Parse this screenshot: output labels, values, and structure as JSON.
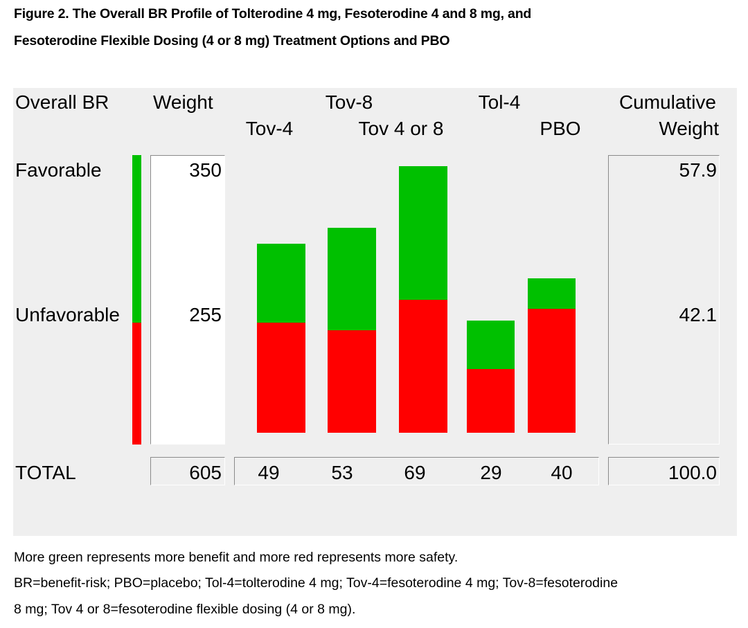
{
  "figure": {
    "title_line1": "Figure 2. The Overall BR Profile of Tolterodine 4 mg,  Fesoterodine 4 and 8 mg,  and",
    "title_line2": "Fesoterodine Flexible Dosing (4 or 8 mg)  Treatment Options and PBO",
    "footnote1": "More green represents more benefit and more red represents more safety.",
    "footnote2": "BR=benefit-risk; PBO=placebo; Tol-4=tolterodine 4 mg; Tov-4=fesoterodine 4 mg; Tov-8=fesoterodine",
    "footnote3": "8 mg; Tov 4 or 8=fesoterodine flexible dosing (4 or 8 mg)."
  },
  "chart_data": {
    "type": "bar",
    "stacked": true,
    "headers": {
      "overall_br": "Overall BR",
      "weight": "Weight",
      "cumulative_line1": "Cumulative",
      "cumulative_line2": "Weight"
    },
    "rows": [
      {
        "label": "Favorable",
        "weight": "350",
        "cumulative": "57.9"
      },
      {
        "label": "Unfavorable",
        "weight": "255",
        "cumulative": "42.1"
      }
    ],
    "totals": {
      "label": "TOTAL",
      "weight": "605",
      "cumulative": "100.0"
    },
    "categories": [
      "Tov-4",
      "Tov-8",
      "Tov 4 or 8",
      "Tol-4",
      "PBO"
    ],
    "totals_by_category": [
      "49",
      "53",
      "69",
      "29",
      "40"
    ],
    "favorable_fraction": [
      0.42,
      0.5,
      0.5,
      0.43,
      0.2
    ],
    "scale_max": 69,
    "colors": {
      "favorable": "#00c000",
      "unfavorable": "#ff0000"
    },
    "weight_bar_favorable_fraction": 0.5785
  }
}
